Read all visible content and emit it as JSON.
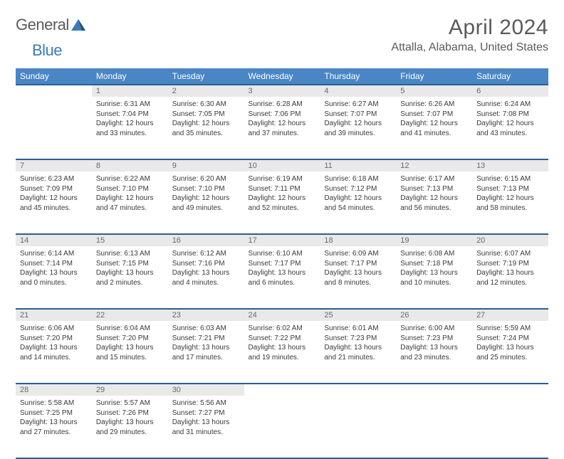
{
  "logo": {
    "text1": "General",
    "text2": "Blue"
  },
  "header": {
    "month": "April 2024",
    "location": "Attalla, Alabama, United States"
  },
  "colors": {
    "header_bg": "#4a86c5",
    "header_border": "#2b5f91",
    "daynum_bg": "#e9e9e9",
    "text": "#3a3a3a"
  },
  "weekdays": [
    "Sunday",
    "Monday",
    "Tuesday",
    "Wednesday",
    "Thursday",
    "Friday",
    "Saturday"
  ],
  "weeks": [
    {
      "nums": [
        "",
        "1",
        "2",
        "3",
        "4",
        "5",
        "6"
      ],
      "cells": [
        null,
        {
          "sunrise": "Sunrise: 6:31 AM",
          "sunset": "Sunset: 7:04 PM",
          "day": "Daylight: 12 hours and 33 minutes."
        },
        {
          "sunrise": "Sunrise: 6:30 AM",
          "sunset": "Sunset: 7:05 PM",
          "day": "Daylight: 12 hours and 35 minutes."
        },
        {
          "sunrise": "Sunrise: 6:28 AM",
          "sunset": "Sunset: 7:06 PM",
          "day": "Daylight: 12 hours and 37 minutes."
        },
        {
          "sunrise": "Sunrise: 6:27 AM",
          "sunset": "Sunset: 7:07 PM",
          "day": "Daylight: 12 hours and 39 minutes."
        },
        {
          "sunrise": "Sunrise: 6:26 AM",
          "sunset": "Sunset: 7:07 PM",
          "day": "Daylight: 12 hours and 41 minutes."
        },
        {
          "sunrise": "Sunrise: 6:24 AM",
          "sunset": "Sunset: 7:08 PM",
          "day": "Daylight: 12 hours and 43 minutes."
        }
      ]
    },
    {
      "nums": [
        "7",
        "8",
        "9",
        "10",
        "11",
        "12",
        "13"
      ],
      "cells": [
        {
          "sunrise": "Sunrise: 6:23 AM",
          "sunset": "Sunset: 7:09 PM",
          "day": "Daylight: 12 hours and 45 minutes."
        },
        {
          "sunrise": "Sunrise: 6:22 AM",
          "sunset": "Sunset: 7:10 PM",
          "day": "Daylight: 12 hours and 47 minutes."
        },
        {
          "sunrise": "Sunrise: 6:20 AM",
          "sunset": "Sunset: 7:10 PM",
          "day": "Daylight: 12 hours and 49 minutes."
        },
        {
          "sunrise": "Sunrise: 6:19 AM",
          "sunset": "Sunset: 7:11 PM",
          "day": "Daylight: 12 hours and 52 minutes."
        },
        {
          "sunrise": "Sunrise: 6:18 AM",
          "sunset": "Sunset: 7:12 PM",
          "day": "Daylight: 12 hours and 54 minutes."
        },
        {
          "sunrise": "Sunrise: 6:17 AM",
          "sunset": "Sunset: 7:13 PM",
          "day": "Daylight: 12 hours and 56 minutes."
        },
        {
          "sunrise": "Sunrise: 6:15 AM",
          "sunset": "Sunset: 7:13 PM",
          "day": "Daylight: 12 hours and 58 minutes."
        }
      ]
    },
    {
      "nums": [
        "14",
        "15",
        "16",
        "17",
        "18",
        "19",
        "20"
      ],
      "cells": [
        {
          "sunrise": "Sunrise: 6:14 AM",
          "sunset": "Sunset: 7:14 PM",
          "day": "Daylight: 13 hours and 0 minutes."
        },
        {
          "sunrise": "Sunrise: 6:13 AM",
          "sunset": "Sunset: 7:15 PM",
          "day": "Daylight: 13 hours and 2 minutes."
        },
        {
          "sunrise": "Sunrise: 6:12 AM",
          "sunset": "Sunset: 7:16 PM",
          "day": "Daylight: 13 hours and 4 minutes."
        },
        {
          "sunrise": "Sunrise: 6:10 AM",
          "sunset": "Sunset: 7:17 PM",
          "day": "Daylight: 13 hours and 6 minutes."
        },
        {
          "sunrise": "Sunrise: 6:09 AM",
          "sunset": "Sunset: 7:17 PM",
          "day": "Daylight: 13 hours and 8 minutes."
        },
        {
          "sunrise": "Sunrise: 6:08 AM",
          "sunset": "Sunset: 7:18 PM",
          "day": "Daylight: 13 hours and 10 minutes."
        },
        {
          "sunrise": "Sunrise: 6:07 AM",
          "sunset": "Sunset: 7:19 PM",
          "day": "Daylight: 13 hours and 12 minutes."
        }
      ]
    },
    {
      "nums": [
        "21",
        "22",
        "23",
        "24",
        "25",
        "26",
        "27"
      ],
      "cells": [
        {
          "sunrise": "Sunrise: 6:06 AM",
          "sunset": "Sunset: 7:20 PM",
          "day": "Daylight: 13 hours and 14 minutes."
        },
        {
          "sunrise": "Sunrise: 6:04 AM",
          "sunset": "Sunset: 7:20 PM",
          "day": "Daylight: 13 hours and 15 minutes."
        },
        {
          "sunrise": "Sunrise: 6:03 AM",
          "sunset": "Sunset: 7:21 PM",
          "day": "Daylight: 13 hours and 17 minutes."
        },
        {
          "sunrise": "Sunrise: 6:02 AM",
          "sunset": "Sunset: 7:22 PM",
          "day": "Daylight: 13 hours and 19 minutes."
        },
        {
          "sunrise": "Sunrise: 6:01 AM",
          "sunset": "Sunset: 7:23 PM",
          "day": "Daylight: 13 hours and 21 minutes."
        },
        {
          "sunrise": "Sunrise: 6:00 AM",
          "sunset": "Sunset: 7:23 PM",
          "day": "Daylight: 13 hours and 23 minutes."
        },
        {
          "sunrise": "Sunrise: 5:59 AM",
          "sunset": "Sunset: 7:24 PM",
          "day": "Daylight: 13 hours and 25 minutes."
        }
      ]
    },
    {
      "nums": [
        "28",
        "29",
        "30",
        "",
        "",
        "",
        ""
      ],
      "cells": [
        {
          "sunrise": "Sunrise: 5:58 AM",
          "sunset": "Sunset: 7:25 PM",
          "day": "Daylight: 13 hours and 27 minutes."
        },
        {
          "sunrise": "Sunrise: 5:57 AM",
          "sunset": "Sunset: 7:26 PM",
          "day": "Daylight: 13 hours and 29 minutes."
        },
        {
          "sunrise": "Sunrise: 5:56 AM",
          "sunset": "Sunset: 7:27 PM",
          "day": "Daylight: 13 hours and 31 minutes."
        },
        null,
        null,
        null,
        null
      ]
    }
  ]
}
